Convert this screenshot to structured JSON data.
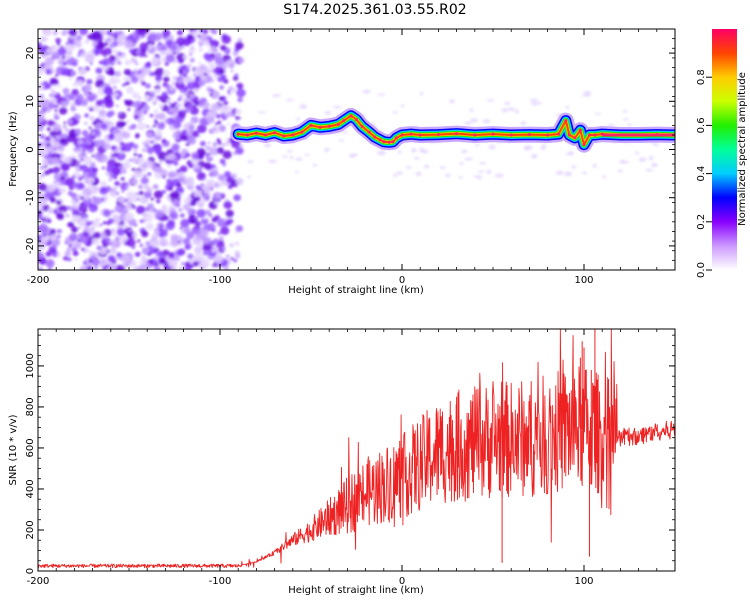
{
  "title": "S174.2025.361.03.55.R02",
  "chart_data": [
    {
      "type": "heatmap",
      "name": "spectrogram",
      "xlabel": "Height of straight line (km)",
      "ylabel": "Frequency (Hz)",
      "xlim": [
        -200,
        150
      ],
      "ylim": [
        -25,
        25
      ],
      "x_ticks": [
        -200,
        -100,
        0,
        100
      ],
      "x_tick_labels": [
        "-200",
        "-100",
        "0",
        "100"
      ],
      "y_ticks": [
        -20,
        -10,
        0,
        10,
        20
      ],
      "y_tick_labels": [
        "-20",
        "-10",
        "0",
        "10",
        "20"
      ],
      "colorbar": {
        "label": "Normalized spectral amplitude",
        "range": [
          0,
          1
        ],
        "ticks": [
          0.0,
          0.2,
          0.4,
          0.6,
          0.8
        ],
        "tick_labels": [
          "0.0",
          "0.2",
          "0.4",
          "0.6",
          "0.8"
        ],
        "colors": [
          "#ffffff",
          "#cc99ff",
          "#8800ff",
          "#0000ff",
          "#00ccff",
          "#00ff99",
          "#22ee00",
          "#ccff00",
          "#ffcc00",
          "#ff4400",
          "#ff0066"
        ]
      },
      "noise_region": {
        "x_range": [
          -200,
          -88
        ],
        "y_range": [
          -25,
          25
        ]
      },
      "ridge": {
        "x": [
          -90,
          -85,
          -80,
          -75,
          -70,
          -65,
          -60,
          -55,
          -50,
          -45,
          -40,
          -35,
          -32,
          -28,
          -25,
          -22,
          -18,
          -15,
          -12,
          -10,
          -7,
          -5,
          -3,
          0,
          5,
          10,
          20,
          30,
          40,
          50,
          60,
          70,
          80,
          86,
          90,
          92,
          95,
          98,
          100,
          103,
          106,
          110,
          120,
          130,
          140,
          150
        ],
        "y": [
          3.2,
          3.0,
          3.4,
          3.0,
          3.5,
          2.8,
          3.0,
          3.6,
          5.0,
          4.6,
          4.8,
          5.2,
          6.0,
          7.0,
          6.2,
          4.8,
          3.6,
          2.6,
          2.0,
          1.6,
          1.5,
          1.6,
          2.4,
          3.0,
          3.2,
          3.0,
          3.1,
          3.3,
          3.0,
          3.2,
          3.0,
          3.1,
          3.0,
          3.2,
          6.0,
          3.0,
          2.4,
          4.0,
          1.0,
          3.0,
          3.0,
          3.2,
          3.0,
          3.0,
          3.1,
          3.0
        ]
      }
    },
    {
      "type": "line",
      "name": "snr",
      "xlabel": "Height of straight line (km)",
      "ylabel": "SNR (10 * v/v)",
      "xlim": [
        -200,
        150
      ],
      "ylim": [
        0,
        1180
      ],
      "x_ticks": [
        -200,
        -100,
        0,
        100
      ],
      "x_tick_labels": [
        "-200",
        "-100",
        "0",
        "100"
      ],
      "y_ticks": [
        0,
        200,
        400,
        600,
        800,
        1000
      ],
      "y_tick_labels": [
        "0",
        "200",
        "400",
        "600",
        "800",
        "1000"
      ],
      "series": [
        {
          "name": "SNR",
          "color": "#ee2222",
          "envelope_x": [
            -200,
            -100,
            -90,
            -80,
            -70,
            -60,
            -50,
            -40,
            -30,
            -20,
            -10,
            0,
            10,
            20,
            30,
            40,
            50,
            60,
            70,
            80,
            90,
            95,
            100,
            105,
            110,
            120,
            130,
            140,
            150
          ],
          "envelope_mean": [
            25,
            25,
            25,
            45,
            90,
            150,
            200,
            260,
            320,
            380,
            420,
            460,
            520,
            580,
            610,
            620,
            640,
            640,
            650,
            660,
            690,
            700,
            690,
            680,
            660,
            650,
            660,
            680,
            690
          ],
          "spikes": [
            {
              "x": 98,
              "y": 1040
            },
            {
              "x": 99,
              "y": 1120
            },
            {
              "x": 100,
              "y": 1090
            },
            {
              "x": 106,
              "y": 1180
            },
            {
              "x": 104,
              "y": 980
            },
            {
              "x": 95,
              "y": 880
            },
            {
              "x": 30,
              "y": 850
            },
            {
              "x": 55,
              "y": 40
            },
            {
              "x": 103,
              "y": 70
            }
          ]
        }
      ]
    }
  ]
}
